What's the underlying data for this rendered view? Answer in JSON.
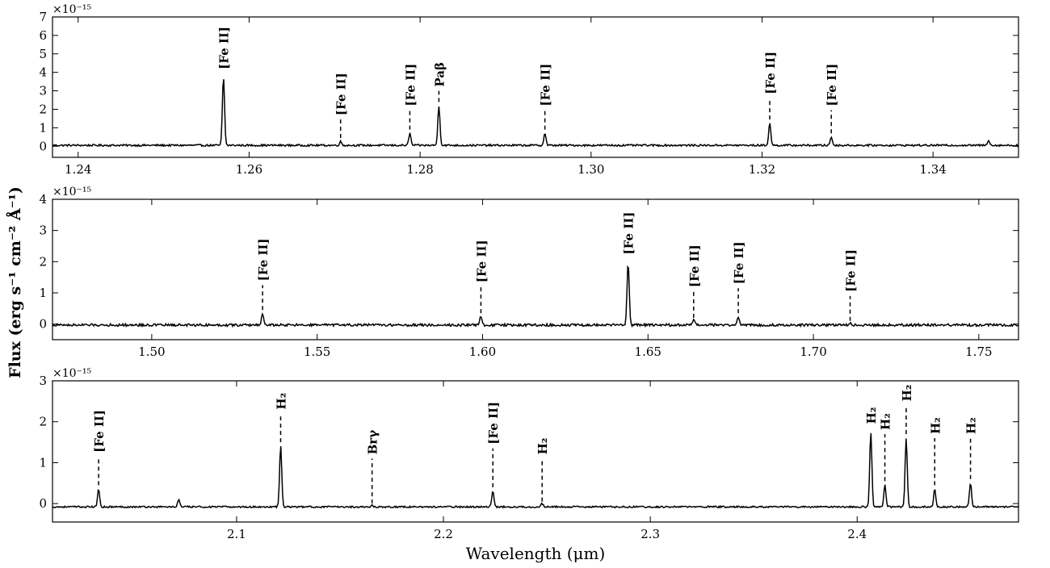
{
  "figure": {
    "xlabel": "Wavelength (μm)",
    "ylabel": "Flux (erg s⁻¹ cm⁻² Å⁻¹)"
  },
  "chart_data": [
    {
      "type": "line",
      "multiplier": "×10⁻¹⁵",
      "xlim": [
        1.237,
        1.35
      ],
      "ylim": [
        -0.6,
        7
      ],
      "xticks": [
        1.24,
        1.26,
        1.28,
        1.3,
        1.32,
        1.34
      ],
      "xtick_labels": [
        "1.24",
        "1.26",
        "1.28",
        "1.30",
        "1.32",
        "1.34"
      ],
      "yticks": [
        0,
        1,
        2,
        3,
        4,
        5,
        6,
        7
      ],
      "ytick_labels": [
        "0",
        "1",
        "2",
        "3",
        "4",
        "5",
        "6",
        "7"
      ],
      "continuum": 0.05,
      "noise": 0.05,
      "lines": [
        {
          "label": "[Fe II]",
          "x": 1.257,
          "peak": 3.75,
          "tick_top": 3.95,
          "tick_bottom": 3.95
        },
        {
          "label": "[Fe II]",
          "x": 1.2707,
          "peak": 0.25,
          "tick_top": 1.45,
          "tick_bottom": 0.45
        },
        {
          "label": "[Fe II]",
          "x": 1.2788,
          "peak": 0.7,
          "tick_top": 1.95,
          "tick_bottom": 0.9
        },
        {
          "label": "Paβ",
          "x": 1.2822,
          "peak": 2.2,
          "tick_top": 3.0,
          "tick_bottom": 2.4
        },
        {
          "label": "[Fe II]",
          "x": 1.2946,
          "peak": 0.7,
          "tick_top": 1.95,
          "tick_bottom": 0.9
        },
        {
          "label": "[Fe II]",
          "x": 1.3209,
          "peak": 1.25,
          "tick_top": 2.6,
          "tick_bottom": 1.45
        },
        {
          "label": "[Fe II]",
          "x": 1.3281,
          "peak": 0.5,
          "tick_top": 1.95,
          "tick_bottom": 0.7
        }
      ],
      "extra_peaks": [
        {
          "x": 1.3465,
          "peak": 0.35
        }
      ]
    },
    {
      "type": "line",
      "multiplier": "×10⁻¹⁵",
      "xlim": [
        1.47,
        1.762
      ],
      "ylim": [
        -0.5,
        4
      ],
      "xticks": [
        1.5,
        1.55,
        1.6,
        1.65,
        1.7,
        1.75
      ],
      "xtick_labels": [
        "1.50",
        "1.55",
        "1.60",
        "1.65",
        "1.70",
        "1.75"
      ],
      "yticks": [
        0,
        1,
        2,
        3,
        4
      ],
      "ytick_labels": [
        "0",
        "1",
        "2",
        "3",
        "4"
      ],
      "continuum": -0.03,
      "noise": 0.04,
      "lines": [
        {
          "label": "[Fe II]",
          "x": 1.5335,
          "peak": 0.35,
          "tick_top": 1.25,
          "tick_bottom": 0.45
        },
        {
          "label": "[Fe II]",
          "x": 1.5995,
          "peak": 0.25,
          "tick_top": 1.2,
          "tick_bottom": 0.35
        },
        {
          "label": "[Fe II]",
          "x": 1.644,
          "peak": 2.0,
          "tick_top": 2.1,
          "tick_bottom": 2.1
        },
        {
          "label": "[Fe II]",
          "x": 1.6638,
          "peak": 0.12,
          "tick_top": 1.05,
          "tick_bottom": 0.2
        },
        {
          "label": "[Fe II]",
          "x": 1.6773,
          "peak": 0.25,
          "tick_top": 1.15,
          "tick_bottom": 0.35
        },
        {
          "label": "[Fe II]",
          "x": 1.7111,
          "peak": 0.05,
          "tick_top": 0.9,
          "tick_bottom": 0.1
        }
      ],
      "extra_peaks": []
    },
    {
      "type": "line",
      "multiplier": "×10⁻¹⁵",
      "xlim": [
        2.011,
        2.478
      ],
      "ylim": [
        -0.45,
        3
      ],
      "xticks": [
        2.1,
        2.2,
        2.3,
        2.4
      ],
      "xtick_labels": [
        "2.1",
        "2.2",
        "2.3",
        "2.4"
      ],
      "yticks": [
        0,
        1,
        2,
        3
      ],
      "ytick_labels": [
        "0",
        "1",
        "2",
        "3"
      ],
      "continuum": -0.08,
      "noise": 0.02,
      "lines": [
        {
          "label": "[Fe II]",
          "x": 2.0333,
          "peak": 0.35,
          "tick_top": 1.15,
          "tick_bottom": 0.45
        },
        {
          "label": "H₂",
          "x": 2.1213,
          "peak": 1.4,
          "tick_top": 2.2,
          "tick_bottom": 1.5
        },
        {
          "label": "Brγ",
          "x": 2.1655,
          "peak": -0.05,
          "tick_top": 1.1,
          "tick_bottom": 0.0
        },
        {
          "label": "[Fe II]",
          "x": 2.2239,
          "peak": 0.3,
          "tick_top": 1.35,
          "tick_bottom": 0.4
        },
        {
          "label": "H₂",
          "x": 2.2477,
          "peak": 0.0,
          "tick_top": 1.1,
          "tick_bottom": 0.05
        },
        {
          "label": "H₂",
          "x": 2.4066,
          "peak": 1.75,
          "tick_top": 1.85,
          "tick_bottom": 1.85
        },
        {
          "label": "H₂",
          "x": 2.4134,
          "peak": 0.45,
          "tick_top": 1.7,
          "tick_bottom": 0.55
        },
        {
          "label": "H₂",
          "x": 2.4237,
          "peak": 1.6,
          "tick_top": 2.4,
          "tick_bottom": 1.7
        },
        {
          "label": "H₂",
          "x": 2.4375,
          "peak": 0.35,
          "tick_top": 1.6,
          "tick_bottom": 0.45
        },
        {
          "label": "H₂",
          "x": 2.4548,
          "peak": 0.5,
          "tick_top": 1.6,
          "tick_bottom": 0.6
        }
      ],
      "extra_peaks": [
        {
          "x": 2.072,
          "peak": 0.1
        }
      ]
    }
  ]
}
